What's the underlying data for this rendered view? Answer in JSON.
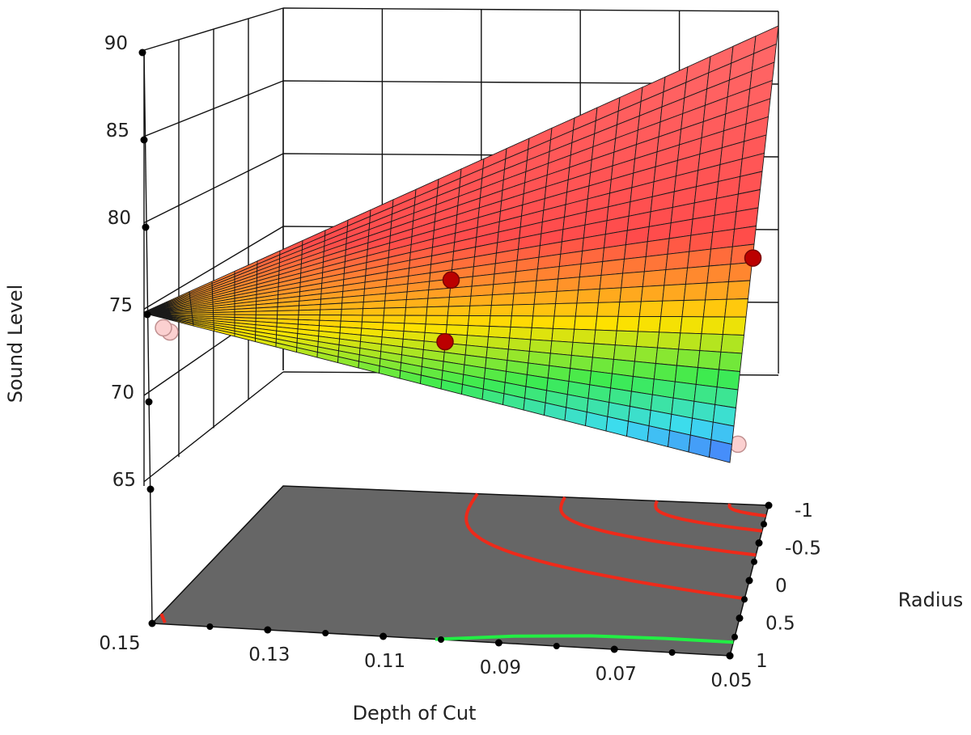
{
  "chart_data": {
    "type": "surface",
    "zlabel": "Sound Level",
    "xlabel": "Depth of Cut",
    "ylabel": "Radius",
    "x_ticks": [
      "0.15",
      "0.13",
      "0.11",
      "0.09",
      "0.07",
      "0.05"
    ],
    "y_ticks": [
      "-1",
      "-0.5",
      "0",
      "0.5",
      "1"
    ],
    "z_ticks": [
      "65",
      "70",
      "75",
      "80",
      "85",
      "90"
    ],
    "xlim": [
      0.05,
      0.15
    ],
    "ylim": [
      -1,
      1
    ],
    "zlim": [
      65,
      90
    ],
    "grid": true,
    "surface_corners": [
      {
        "depth_of_cut": 0.15,
        "radius": -1,
        "sound_level": 74.5
      },
      {
        "depth_of_cut": 0.15,
        "radius": 1,
        "sound_level": 74.5
      },
      {
        "depth_of_cut": 0.05,
        "radius": -1,
        "sound_level": 89.0
      },
      {
        "depth_of_cut": 0.05,
        "radius": 1,
        "sound_level": 66.0
      }
    ],
    "design_points": [
      {
        "depth_of_cut": 0.1,
        "radius": 0,
        "sound_level": 75.6,
        "position": "above"
      },
      {
        "depth_of_cut": 0.1,
        "radius": 0.6,
        "sound_level": 73.8,
        "position": "above"
      },
      {
        "depth_of_cut": 0.05,
        "radius": 0.05,
        "sound_level": 75.8,
        "position": "above"
      },
      {
        "depth_of_cut": 0.05,
        "radius": 1,
        "sound_level": 66.8,
        "position": "below"
      },
      {
        "depth_of_cut": 0.15,
        "radius": 1,
        "sound_level": 73.7,
        "position": "below"
      },
      {
        "depth_of_cut": 0.15,
        "radius": -0.6,
        "sound_level": 74.3,
        "position": "below"
      }
    ],
    "colors": {
      "surface_high": "#ff4b4b",
      "surface_mid": "#ffe100",
      "surface_low": "#4a6bff",
      "floor": "#666666",
      "contour_red": "#ee2a1a",
      "contour_green": "#22ee44",
      "point_above": "#bb0000",
      "point_below": "#fbd0d0"
    }
  }
}
